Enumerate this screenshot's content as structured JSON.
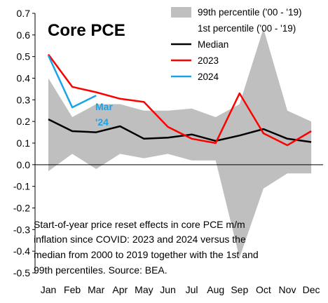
{
  "chart_data": {
    "type": "line",
    "title": "Core PCE",
    "categories": [
      "Jan",
      "Feb",
      "Mar",
      "Apr",
      "May",
      "Jun",
      "Jul",
      "Aug",
      "Sep",
      "Oct",
      "Nov",
      "Dec"
    ],
    "ylim": [
      -0.5,
      0.7
    ],
    "yticks": [
      "0.7",
      "0.6",
      "0.5",
      "0.4",
      "0.3",
      "0.2",
      "0.1",
      "0.0",
      "-0.1",
      "-0.2",
      "-0.3",
      "-0.4",
      "-0.5"
    ],
    "band": {
      "upper_name": "99th percentile ('00 - '19)",
      "lower_name": "1st percentile ('00 - '19)",
      "color": "#bfbfbf",
      "upper": [
        0.4,
        0.22,
        0.28,
        0.28,
        0.25,
        0.25,
        0.26,
        0.22,
        0.28,
        0.63,
        0.25,
        0.2
      ],
      "lower": [
        -0.03,
        0.05,
        -0.02,
        0.05,
        0.03,
        0.05,
        0.02,
        0.02,
        -0.43,
        -0.11,
        -0.04,
        -0.04
      ]
    },
    "series": [
      {
        "name": "Median",
        "color": "#000000",
        "values": [
          0.21,
          0.155,
          0.15,
          0.178,
          0.12,
          0.125,
          0.14,
          0.11,
          0.135,
          0.165,
          0.12,
          0.105
        ]
      },
      {
        "name": "2023",
        "color": "#ff0000",
        "values": [
          0.51,
          0.36,
          0.335,
          0.305,
          0.29,
          0.175,
          0.12,
          0.1,
          0.33,
          0.145,
          0.09,
          0.155
        ]
      },
      {
        "name": "2024",
        "color": "#1aa3e8",
        "values": [
          0.505,
          0.265,
          0.32,
          null,
          null,
          null,
          null,
          null,
          null,
          null,
          null,
          null
        ]
      }
    ],
    "annotation": {
      "line1": "Mar",
      "line2": "'24",
      "color": "#1aa3e8"
    },
    "caption_lines": [
      "Start-of-year price reset effects in core PCE m/m",
      "inflation since COVID: 2023 and 2024 versus the",
      "median from 2000 to 2019 together with the 1st and",
      "99th percentiles. Source: BEA."
    ],
    "grid": false,
    "legend_position": "top-right"
  }
}
